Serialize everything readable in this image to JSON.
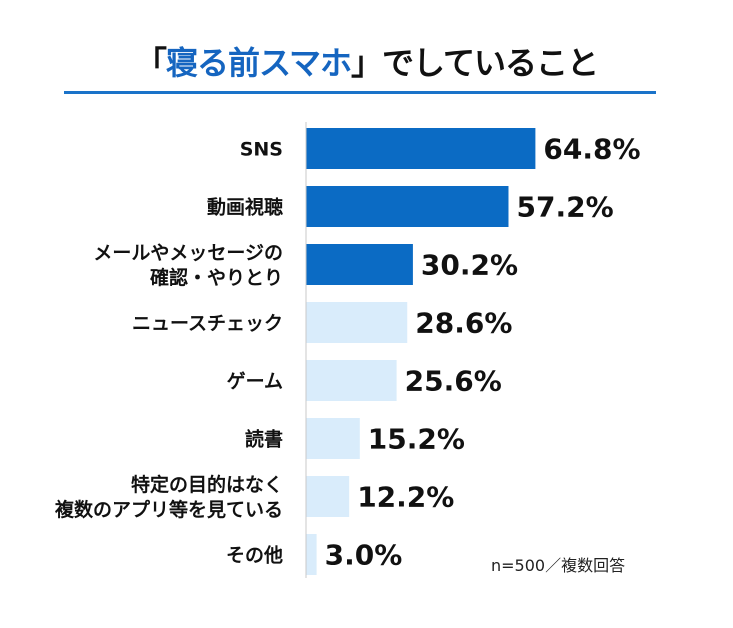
{
  "title": {
    "prefix": "「",
    "highlight": "寝る前スマホ",
    "suffix": "」でしていること"
  },
  "note": "n=500／複数回答",
  "colors": {
    "highlight": "#1565c0",
    "bar_dark": "#0b6bc4",
    "bar_light": "#d9ecfb",
    "axis": "#c9c9c9"
  },
  "chart_data": {
    "type": "bar",
    "orientation": "horizontal",
    "categories": [
      "SNS",
      "動画視聴",
      "メールやメッセージの\n確認・やりとり",
      "ニュースチェック",
      "ゲーム",
      "読書",
      "特定の目的はなく\n複数のアプリ等を見ている",
      "その他"
    ],
    "values": [
      64.8,
      57.2,
      30.2,
      28.6,
      25.6,
      15.2,
      12.2,
      3.0
    ],
    "value_labels": [
      "64.8%",
      "57.2%",
      "30.2%",
      "28.6%",
      "25.6%",
      "15.2%",
      "12.2%",
      "3.0%"
    ],
    "highlighted": [
      true,
      true,
      true,
      false,
      false,
      false,
      false,
      false
    ],
    "xlim": [
      0,
      100
    ]
  }
}
